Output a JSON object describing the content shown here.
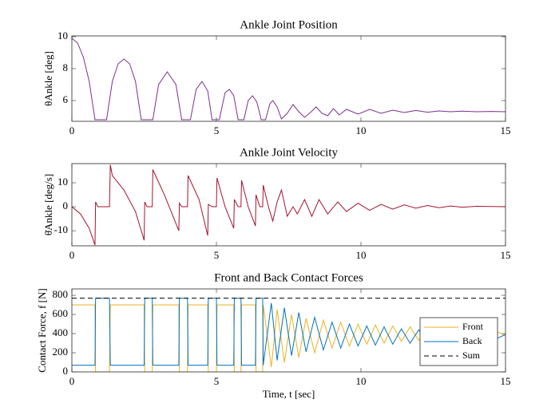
{
  "chart_data": [
    {
      "type": "line",
      "title": "Ankle Joint Position",
      "ylabel": "θAnkle [deg]",
      "x": [
        0,
        0.2,
        0.4,
        0.6,
        0.8,
        1.2,
        1.4,
        1.6,
        1.8,
        2.0,
        2.2,
        2.4,
        2.8,
        3.0,
        3.3,
        3.6,
        3.8,
        4.1,
        4.3,
        4.5,
        4.7,
        4.85,
        5.1,
        5.3,
        5.45,
        5.6,
        5.75,
        5.95,
        6.1,
        6.25,
        6.4,
        6.55,
        6.7,
        6.85,
        6.95,
        7.1,
        7.25,
        7.45,
        7.65,
        7.85,
        8.05,
        8.25,
        8.45,
        8.65,
        8.85,
        9.05,
        9.25,
        9.5,
        9.9,
        10.3,
        10.7,
        11.1,
        11.5,
        11.9,
        12.3,
        12.7,
        13.1,
        13.5,
        14,
        14.5,
        15
      ],
      "series": [
        {
          "name": "θ",
          "color": "#7e2f8e",
          "values": [
            9.9,
            9.6,
            8.7,
            7.2,
            4.8,
            4.8,
            7.2,
            8.3,
            8.6,
            8.3,
            7.2,
            4.8,
            4.8,
            7.0,
            7.8,
            7.0,
            4.8,
            4.8,
            6.7,
            7.2,
            6.6,
            4.8,
            4.8,
            6.5,
            6.7,
            6.3,
            4.8,
            4.8,
            6.0,
            6.3,
            5.9,
            4.8,
            4.8,
            5.8,
            6.0,
            5.6,
            4.85,
            5.2,
            5.75,
            5.3,
            4.95,
            5.25,
            5.6,
            5.2,
            5.05,
            5.5,
            5.1,
            5.45,
            5.15,
            5.45,
            5.2,
            5.4,
            5.25,
            5.38,
            5.27,
            5.35,
            5.3,
            5.34,
            5.3,
            5.32,
            5.3
          ]
        }
      ],
      "xlim": [
        0,
        15
      ],
      "xticks": [
        0,
        5,
        10,
        15
      ],
      "ylim": [
        4.7,
        10.05
      ],
      "yticks": [
        6,
        8,
        10
      ]
    },
    {
      "type": "line",
      "title": "Ankle Joint Velocity",
      "ylabel": "θ̇Ankle [deg/s]",
      "x": [
        0,
        0.3,
        0.6,
        0.8,
        0.82,
        0.9,
        1.3,
        1.33,
        1.4,
        1.8,
        2.2,
        2.5,
        2.52,
        2.6,
        2.78,
        2.8,
        3.2,
        3.7,
        3.72,
        3.8,
        4.0,
        4.02,
        4.4,
        4.7,
        4.72,
        4.85,
        5.0,
        5.02,
        5.3,
        5.6,
        5.62,
        5.75,
        5.85,
        5.87,
        6.1,
        6.35,
        6.37,
        6.5,
        6.6,
        6.62,
        6.8,
        6.95,
        7.1,
        7.25,
        7.45,
        7.65,
        7.8,
        8.05,
        8.3,
        8.55,
        8.85,
        9.2,
        9.5,
        9.9,
        10.3,
        10.7,
        11.1,
        11.5,
        11.9,
        12.3,
        12.7,
        13.1,
        13.5,
        14,
        15
      ],
      "series": [
        {
          "name": "θ̇",
          "color": "#a2142f",
          "values": [
            0,
            -3,
            -9,
            -16,
            2,
            0,
            0,
            17.5,
            13,
            7,
            -2,
            -14,
            2,
            0,
            0,
            15.5,
            5,
            -10,
            1.5,
            0,
            0,
            13,
            3,
            -12,
            1,
            0,
            0,
            12,
            0,
            -9,
            3,
            0,
            0,
            11,
            0,
            -8,
            5,
            0,
            0,
            9,
            0,
            -6,
            2,
            7,
            -4,
            0,
            -3,
            3,
            -4,
            3,
            -3,
            2,
            -2,
            1.5,
            -1.5,
            1,
            -1,
            0.8,
            -0.6,
            0.5,
            -0.4,
            0.3,
            -0.2,
            0.2,
            0
          ]
        }
      ],
      "xlim": [
        0,
        15
      ],
      "xticks": [
        0,
        5,
        10,
        15
      ],
      "ylim": [
        -16.3,
        18
      ],
      "yticks": [
        -10,
        0,
        10
      ]
    },
    {
      "type": "line",
      "title": "Front and Back Contact Forces",
      "ylabel": "Contact Force, f [N]",
      "xlabel": "Time, t [sec]",
      "legend": "lower right",
      "x": [
        0,
        0.8,
        0.82,
        1.3,
        1.33,
        2.5,
        2.52,
        2.78,
        2.8,
        3.7,
        3.72,
        4.0,
        4.02,
        4.7,
        4.72,
        5.0,
        5.02,
        5.6,
        5.62,
        5.85,
        5.87,
        6.35,
        6.37,
        6.6,
        6.62,
        6.9,
        7.1,
        7.35,
        7.6,
        7.85,
        8.1,
        8.4,
        8.7,
        9.0,
        9.3,
        9.6,
        9.9,
        10.2,
        10.5,
        10.8,
        11.1,
        11.4,
        11.7,
        12.0,
        12.3,
        12.6,
        12.9,
        13.2,
        13.5,
        13.8,
        14.1,
        14.4,
        14.7,
        15
      ],
      "series": [
        {
          "name": "Front",
          "color": "#edb120",
          "values": [
            700,
            700,
            0,
            0,
            700,
            700,
            0,
            0,
            700,
            700,
            0,
            0,
            700,
            700,
            0,
            0,
            700,
            700,
            0,
            0,
            700,
            700,
            0,
            0,
            700,
            50,
            650,
            100,
            600,
            150,
            560,
            200,
            540,
            250,
            520,
            270,
            500,
            290,
            490,
            300,
            480,
            320,
            470,
            330,
            460,
            340,
            450,
            350,
            440,
            360,
            430,
            370,
            420,
            380
          ]
        },
        {
          "name": "Back",
          "color": "#0072bd",
          "values": [
            70,
            70,
            770,
            770,
            70,
            70,
            770,
            770,
            70,
            70,
            770,
            770,
            70,
            70,
            770,
            770,
            70,
            70,
            770,
            770,
            70,
            70,
            770,
            770,
            70,
            720,
            120,
            670,
            170,
            620,
            210,
            570,
            230,
            520,
            250,
            500,
            270,
            480,
            280,
            470,
            290,
            450,
            300,
            440,
            310,
            430,
            320,
            420,
            330,
            410,
            340,
            400,
            350,
            390
          ]
        },
        {
          "name": "Sum",
          "color": "#000000",
          "dashed": true,
          "values": [
            770,
            770,
            770,
            770,
            770,
            770,
            770,
            770,
            770,
            770,
            770,
            770,
            770,
            770,
            770,
            770,
            770,
            770,
            770,
            770,
            770,
            770,
            770,
            770,
            770,
            770,
            770,
            770,
            770,
            770,
            770,
            770,
            770,
            770,
            770,
            770,
            770,
            770,
            770,
            770,
            770,
            770,
            770,
            770,
            770,
            770,
            770,
            770,
            770,
            770,
            770,
            770,
            770,
            770
          ]
        }
      ],
      "xlim": [
        0,
        15
      ],
      "xticks": [
        0,
        5,
        10,
        15
      ],
      "ylim": [
        0,
        867
      ],
      "yticks": [
        0,
        200,
        400,
        600,
        800
      ]
    }
  ]
}
